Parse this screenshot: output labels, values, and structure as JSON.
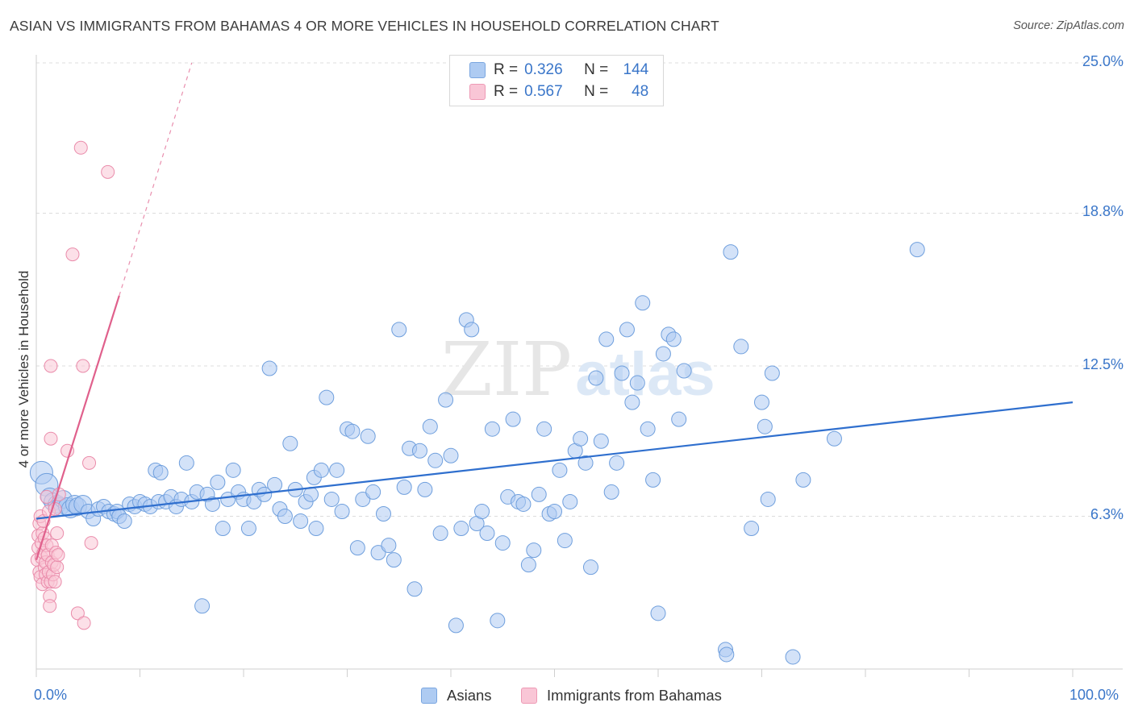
{
  "title": "ASIAN VS IMMIGRANTS FROM BAHAMAS 4 OR MORE VEHICLES IN HOUSEHOLD CORRELATION CHART",
  "source": "Source: ZipAtlas.com",
  "watermark": {
    "zip": "ZIP",
    "atlas": "atlas"
  },
  "legend": {
    "rows": [
      {
        "r_label": "R =",
        "r_value": "0.326",
        "n_label": "N =",
        "n_value": "144",
        "color": "#aecbf2"
      },
      {
        "r_label": "R =",
        "r_value": "0.567",
        "n_label": "N =",
        "n_value": "48",
        "color": "#f9c6d6"
      }
    ]
  },
  "bottom_legend": {
    "series1": "Asians",
    "series2": "Immigrants from Bahamas"
  },
  "colors": {
    "blue_fill": "#aecbf2",
    "blue_stroke": "#6f9fdd",
    "blue_line": "#2f6fce",
    "pink_fill": "#f9c6d6",
    "pink_stroke": "#ea8cab",
    "pink_line": "#e0608c",
    "tick_text": "#3a76c9"
  },
  "chart_data": {
    "type": "scatter",
    "title": "ASIAN VS IMMIGRANTS FROM BAHAMAS 4 OR MORE VEHICLES IN HOUSEHOLD CORRELATION CHART",
    "xlabel": "",
    "ylabel": "4 or more Vehicles in Household",
    "xlim": [
      0,
      100
    ],
    "ylim": [
      0,
      25
    ],
    "x_tick_labels": [
      "0.0%",
      "100.0%"
    ],
    "y_tick_values": [
      6.3,
      12.5,
      18.8,
      25.0
    ],
    "y_tick_labels": [
      "6.3%",
      "12.5%",
      "18.8%",
      "25.0%"
    ],
    "grid": "horizontal dashed",
    "legend_placement": "top-center",
    "series": [
      {
        "name": "Asians",
        "R": 0.326,
        "N": 144,
        "trend": {
          "x": [
            0,
            100
          ],
          "y": [
            6.2,
            11.0
          ]
        },
        "points": [
          [
            0.5,
            8.1
          ],
          [
            1.0,
            7.6
          ],
          [
            1.3,
            7.1
          ],
          [
            1.6,
            6.9
          ],
          [
            2.0,
            6.8
          ],
          [
            2.3,
            6.7
          ],
          [
            2.6,
            7.0
          ],
          [
            3.0,
            6.7
          ],
          [
            3.3,
            6.6
          ],
          [
            3.7,
            6.8
          ],
          [
            4.0,
            6.7
          ],
          [
            4.5,
            6.8
          ],
          [
            5.0,
            6.5
          ],
          [
            5.5,
            6.2
          ],
          [
            6.0,
            6.6
          ],
          [
            6.5,
            6.7
          ],
          [
            7.0,
            6.5
          ],
          [
            7.5,
            6.4
          ],
          [
            7.8,
            6.5
          ],
          [
            8.0,
            6.3
          ],
          [
            8.5,
            6.1
          ],
          [
            9.0,
            6.8
          ],
          [
            9.5,
            6.7
          ],
          [
            10.0,
            6.9
          ],
          [
            10.5,
            6.8
          ],
          [
            11.0,
            6.7
          ],
          [
            11.5,
            8.2
          ],
          [
            11.8,
            6.9
          ],
          [
            12.0,
            8.1
          ],
          [
            12.5,
            6.9
          ],
          [
            13.0,
            7.1
          ],
          [
            13.5,
            6.7
          ],
          [
            14.0,
            7.0
          ],
          [
            14.5,
            8.5
          ],
          [
            15.0,
            6.9
          ],
          [
            15.5,
            7.3
          ],
          [
            16.0,
            2.6
          ],
          [
            16.5,
            7.2
          ],
          [
            17.0,
            6.8
          ],
          [
            17.5,
            7.7
          ],
          [
            18.0,
            5.8
          ],
          [
            18.5,
            7.0
          ],
          [
            19.0,
            8.2
          ],
          [
            19.5,
            7.3
          ],
          [
            20.0,
            7.0
          ],
          [
            20.5,
            5.8
          ],
          [
            21.0,
            6.9
          ],
          [
            21.5,
            7.4
          ],
          [
            22.0,
            7.2
          ],
          [
            22.5,
            12.4
          ],
          [
            23.0,
            7.6
          ],
          [
            23.5,
            6.6
          ],
          [
            24.0,
            6.3
          ],
          [
            24.5,
            9.3
          ],
          [
            25.0,
            7.4
          ],
          [
            25.5,
            6.1
          ],
          [
            26.0,
            6.9
          ],
          [
            26.5,
            7.2
          ],
          [
            26.8,
            7.9
          ],
          [
            27.0,
            5.8
          ],
          [
            27.5,
            8.2
          ],
          [
            28.0,
            11.2
          ],
          [
            28.5,
            7.0
          ],
          [
            29.0,
            8.2
          ],
          [
            29.5,
            6.5
          ],
          [
            30.0,
            9.9
          ],
          [
            30.5,
            9.8
          ],
          [
            31.0,
            5.0
          ],
          [
            31.5,
            7.0
          ],
          [
            32.0,
            9.6
          ],
          [
            32.5,
            7.3
          ],
          [
            33.0,
            4.8
          ],
          [
            33.5,
            6.4
          ],
          [
            34.0,
            5.1
          ],
          [
            34.5,
            4.5
          ],
          [
            35.0,
            14.0
          ],
          [
            35.5,
            7.5
          ],
          [
            36.0,
            9.1
          ],
          [
            36.5,
            3.3
          ],
          [
            37.0,
            9.0
          ],
          [
            37.5,
            7.4
          ],
          [
            38.0,
            10.0
          ],
          [
            38.5,
            8.6
          ],
          [
            39.0,
            5.6
          ],
          [
            39.5,
            11.1
          ],
          [
            40.0,
            8.8
          ],
          [
            40.5,
            1.8
          ],
          [
            41.0,
            5.8
          ],
          [
            41.5,
            14.4
          ],
          [
            42.0,
            14.0
          ],
          [
            42.5,
            6.0
          ],
          [
            43.0,
            6.5
          ],
          [
            43.5,
            5.6
          ],
          [
            44.0,
            9.9
          ],
          [
            44.5,
            2.0
          ],
          [
            45.0,
            5.2
          ],
          [
            45.5,
            7.1
          ],
          [
            46.0,
            10.3
          ],
          [
            46.5,
            6.9
          ],
          [
            47.0,
            6.8
          ],
          [
            47.5,
            4.3
          ],
          [
            48.0,
            4.9
          ],
          [
            48.5,
            7.2
          ],
          [
            49.0,
            9.9
          ],
          [
            49.5,
            6.4
          ],
          [
            50.0,
            6.5
          ],
          [
            50.5,
            8.2
          ],
          [
            51.0,
            5.3
          ],
          [
            51.5,
            6.9
          ],
          [
            52.0,
            9.0
          ],
          [
            52.5,
            9.5
          ],
          [
            53.0,
            8.5
          ],
          [
            53.5,
            4.2
          ],
          [
            54.0,
            12.0
          ],
          [
            54.5,
            9.4
          ],
          [
            55.0,
            13.6
          ],
          [
            55.5,
            7.3
          ],
          [
            56.0,
            8.5
          ],
          [
            56.5,
            12.2
          ],
          [
            57.0,
            14.0
          ],
          [
            57.5,
            11.0
          ],
          [
            58.0,
            11.8
          ],
          [
            58.5,
            15.1
          ],
          [
            59.0,
            9.9
          ],
          [
            59.5,
            7.8
          ],
          [
            60.0,
            2.3
          ],
          [
            60.5,
            13.0
          ],
          [
            61.0,
            13.8
          ],
          [
            61.5,
            13.6
          ],
          [
            62.0,
            10.3
          ],
          [
            62.5,
            12.3
          ],
          [
            66.5,
            0.8
          ],
          [
            66.6,
            0.6
          ],
          [
            67.0,
            17.2
          ],
          [
            68.0,
            13.3
          ],
          [
            69.0,
            5.8
          ],
          [
            70.0,
            11.0
          ],
          [
            70.3,
            10.0
          ],
          [
            70.6,
            7.0
          ],
          [
            71.0,
            12.2
          ],
          [
            73.0,
            0.5
          ],
          [
            74.0,
            7.8
          ],
          [
            77.0,
            9.5
          ],
          [
            85.0,
            17.3
          ]
        ]
      },
      {
        "name": "Immigrants from Bahamas",
        "R": 0.567,
        "N": 48,
        "trend": {
          "x": [
            0,
            8
          ],
          "y": [
            4.5,
            15.4
          ]
        },
        "trend_dashed": {
          "x": [
            8,
            15
          ],
          "y": [
            15.4,
            25.0
          ]
        },
        "points": [
          [
            0.1,
            4.5
          ],
          [
            0.2,
            5.0
          ],
          [
            0.2,
            5.5
          ],
          [
            0.3,
            6.0
          ],
          [
            0.3,
            4.0
          ],
          [
            0.4,
            6.3
          ],
          [
            0.4,
            3.8
          ],
          [
            0.5,
            5.2
          ],
          [
            0.5,
            4.6
          ],
          [
            0.6,
            5.6
          ],
          [
            0.6,
            3.5
          ],
          [
            0.7,
            4.8
          ],
          [
            0.7,
            6.1
          ],
          [
            0.8,
            4.2
          ],
          [
            0.8,
            5.4
          ],
          [
            0.9,
            3.9
          ],
          [
            0.9,
            4.4
          ],
          [
            1.0,
            7.1
          ],
          [
            1.0,
            5.1
          ],
          [
            1.1,
            4.7
          ],
          [
            1.1,
            3.6
          ],
          [
            1.2,
            4.0
          ],
          [
            1.2,
            6.5
          ],
          [
            1.3,
            3.0
          ],
          [
            1.3,
            2.6
          ],
          [
            1.4,
            3.6
          ],
          [
            1.4,
            9.5
          ],
          [
            1.4,
            12.5
          ],
          [
            1.5,
            4.4
          ],
          [
            1.5,
            5.1
          ],
          [
            1.6,
            3.9
          ],
          [
            1.7,
            4.3
          ],
          [
            1.8,
            3.6
          ],
          [
            1.8,
            6.6
          ],
          [
            1.9,
            4.8
          ],
          [
            2.0,
            4.2
          ],
          [
            2.0,
            5.6
          ],
          [
            2.1,
            4.7
          ],
          [
            2.2,
            7.2
          ],
          [
            3.0,
            9.0
          ],
          [
            3.5,
            17.1
          ],
          [
            4.0,
            2.3
          ],
          [
            4.3,
            21.5
          ],
          [
            4.5,
            12.5
          ],
          [
            4.6,
            1.9
          ],
          [
            5.1,
            8.5
          ],
          [
            5.3,
            5.2
          ],
          [
            6.9,
            20.5
          ]
        ]
      }
    ]
  }
}
